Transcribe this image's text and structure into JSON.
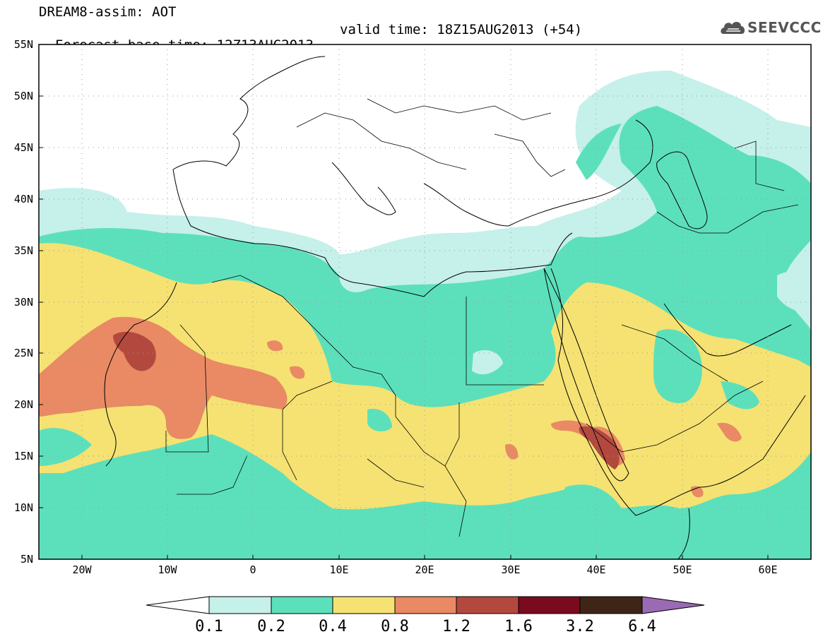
{
  "header": {
    "title_line1": "DREAM8-assim: AOT",
    "base_time": "Forecast base time: 12Z13AUG2013",
    "valid_time": "valid time: 18Z15AUG2013 (+54)"
  },
  "logo": {
    "text": "SEEVCCC",
    "icon": "cloud-icon"
  },
  "axes": {
    "lat_labels": [
      "55N",
      "50N",
      "45N",
      "40N",
      "35N",
      "30N",
      "25N",
      "20N",
      "15N",
      "10N",
      "5N"
    ],
    "lon_labels": [
      "20W",
      "10W",
      "0",
      "10E",
      "20E",
      "30E",
      "40E",
      "50E",
      "60E"
    ],
    "lon_range": [
      -25,
      65
    ],
    "lat_range": [
      5,
      55
    ]
  },
  "colorbar": {
    "labels": [
      "0.1",
      "0.2",
      "0.4",
      "0.8",
      "1.2",
      "1.6",
      "3.2",
      "6.4"
    ],
    "colors": [
      "#ffffff",
      "#c6f0ea",
      "#5ce0bb",
      "#f5e272",
      "#e98a64",
      "#b3493e",
      "#7a0b1e",
      "#3e2516",
      "#9a6ab4"
    ]
  }
}
